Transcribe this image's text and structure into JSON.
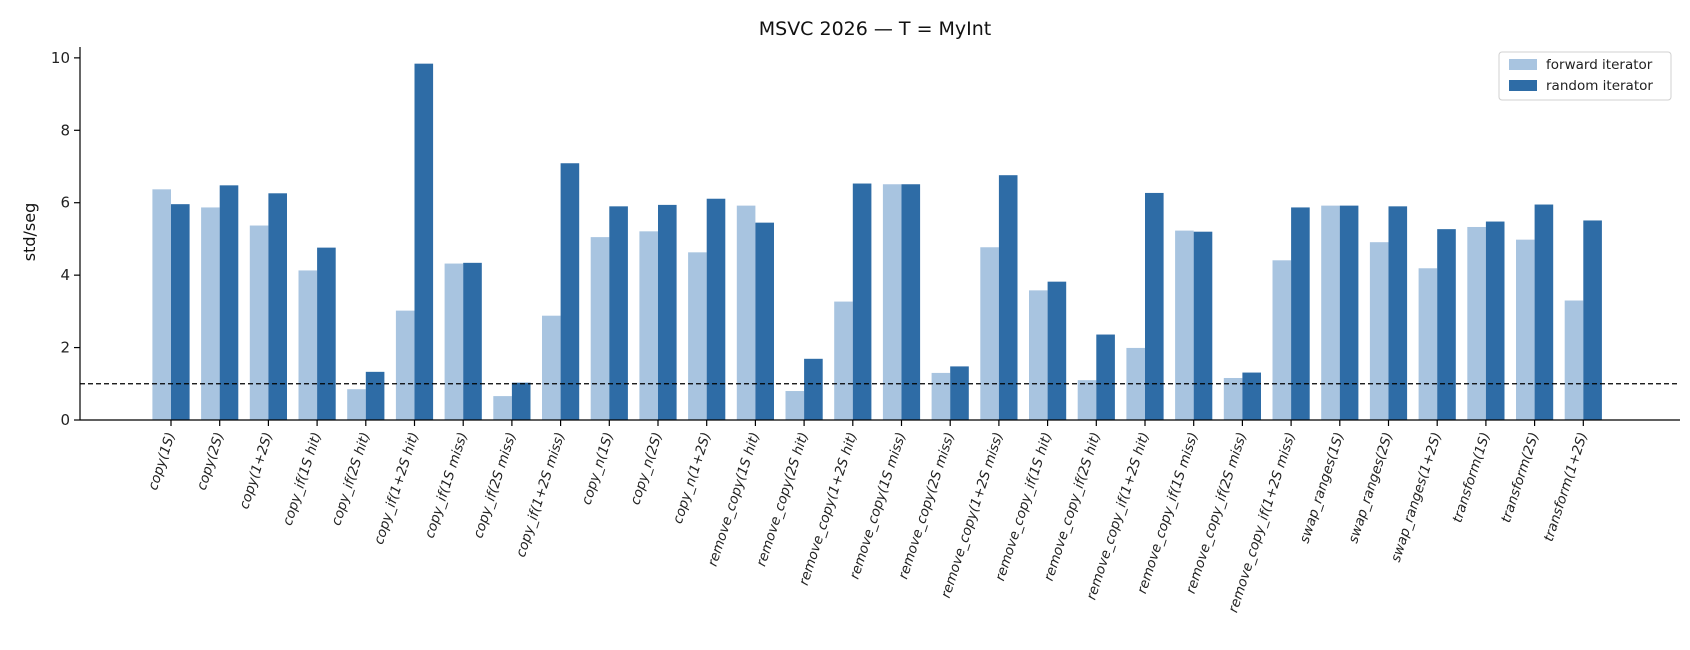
{
  "chart_data": {
    "type": "bar",
    "title": "MSVC 2026 — T = MyInt",
    "xlabel": "",
    "ylabel": "std/seg",
    "ylim": [
      0,
      10.3
    ],
    "yticks": [
      0,
      2,
      4,
      6,
      8,
      10
    ],
    "reference_line": 1.0,
    "legend_position": "top-right",
    "grid": false,
    "categories": [
      "copy(1S)",
      "copy(2S)",
      "copy(1+2S)",
      "copy_if(1S hit)",
      "copy_if(2S hit)",
      "copy_if(1+2S hit)",
      "copy_if(1S miss)",
      "copy_if(2S miss)",
      "copy_if(1+2S miss)",
      "copy_n(1S)",
      "copy_n(2S)",
      "copy_n(1+2S)",
      "remove_copy(1S hit)",
      "remove_copy(2S hit)",
      "remove_copy(1+2S hit)",
      "remove_copy(1S miss)",
      "remove_copy(2S miss)",
      "remove_copy(1+2S miss)",
      "remove_copy_if(1S hit)",
      "remove_copy_if(2S hit)",
      "remove_copy_if(1+2S hit)",
      "remove_copy_if(1S miss)",
      "remove_copy_if(2S miss)",
      "remove_copy_if(1+2S miss)",
      "swap_ranges(1S)",
      "swap_ranges(2S)",
      "swap_ranges(1+2S)",
      "transform(1S)",
      "transform(2S)",
      "transform(1+2S)"
    ],
    "series": [
      {
        "name": "forward iterator",
        "color": "#a8c4e0",
        "values": [
          6.37,
          5.87,
          5.37,
          4.13,
          0.85,
          3.02,
          4.32,
          0.66,
          2.88,
          5.05,
          5.21,
          4.63,
          5.92,
          0.8,
          3.27,
          6.51,
          1.3,
          4.77,
          3.58,
          1.1,
          1.99,
          5.23,
          1.16,
          4.41,
          5.92,
          4.91,
          4.19,
          5.33,
          4.98,
          3.3
        ]
      },
      {
        "name": "random iterator",
        "color": "#2e6ca6",
        "values": [
          5.96,
          6.48,
          6.26,
          4.76,
          1.33,
          9.84,
          4.34,
          1.03,
          7.09,
          5.9,
          5.94,
          6.11,
          5.45,
          1.69,
          6.53,
          6.51,
          1.48,
          6.76,
          3.82,
          2.36,
          6.27,
          5.2,
          1.31,
          5.87,
          5.92,
          5.9,
          5.27,
          5.48,
          5.95,
          5.51
        ]
      }
    ]
  }
}
